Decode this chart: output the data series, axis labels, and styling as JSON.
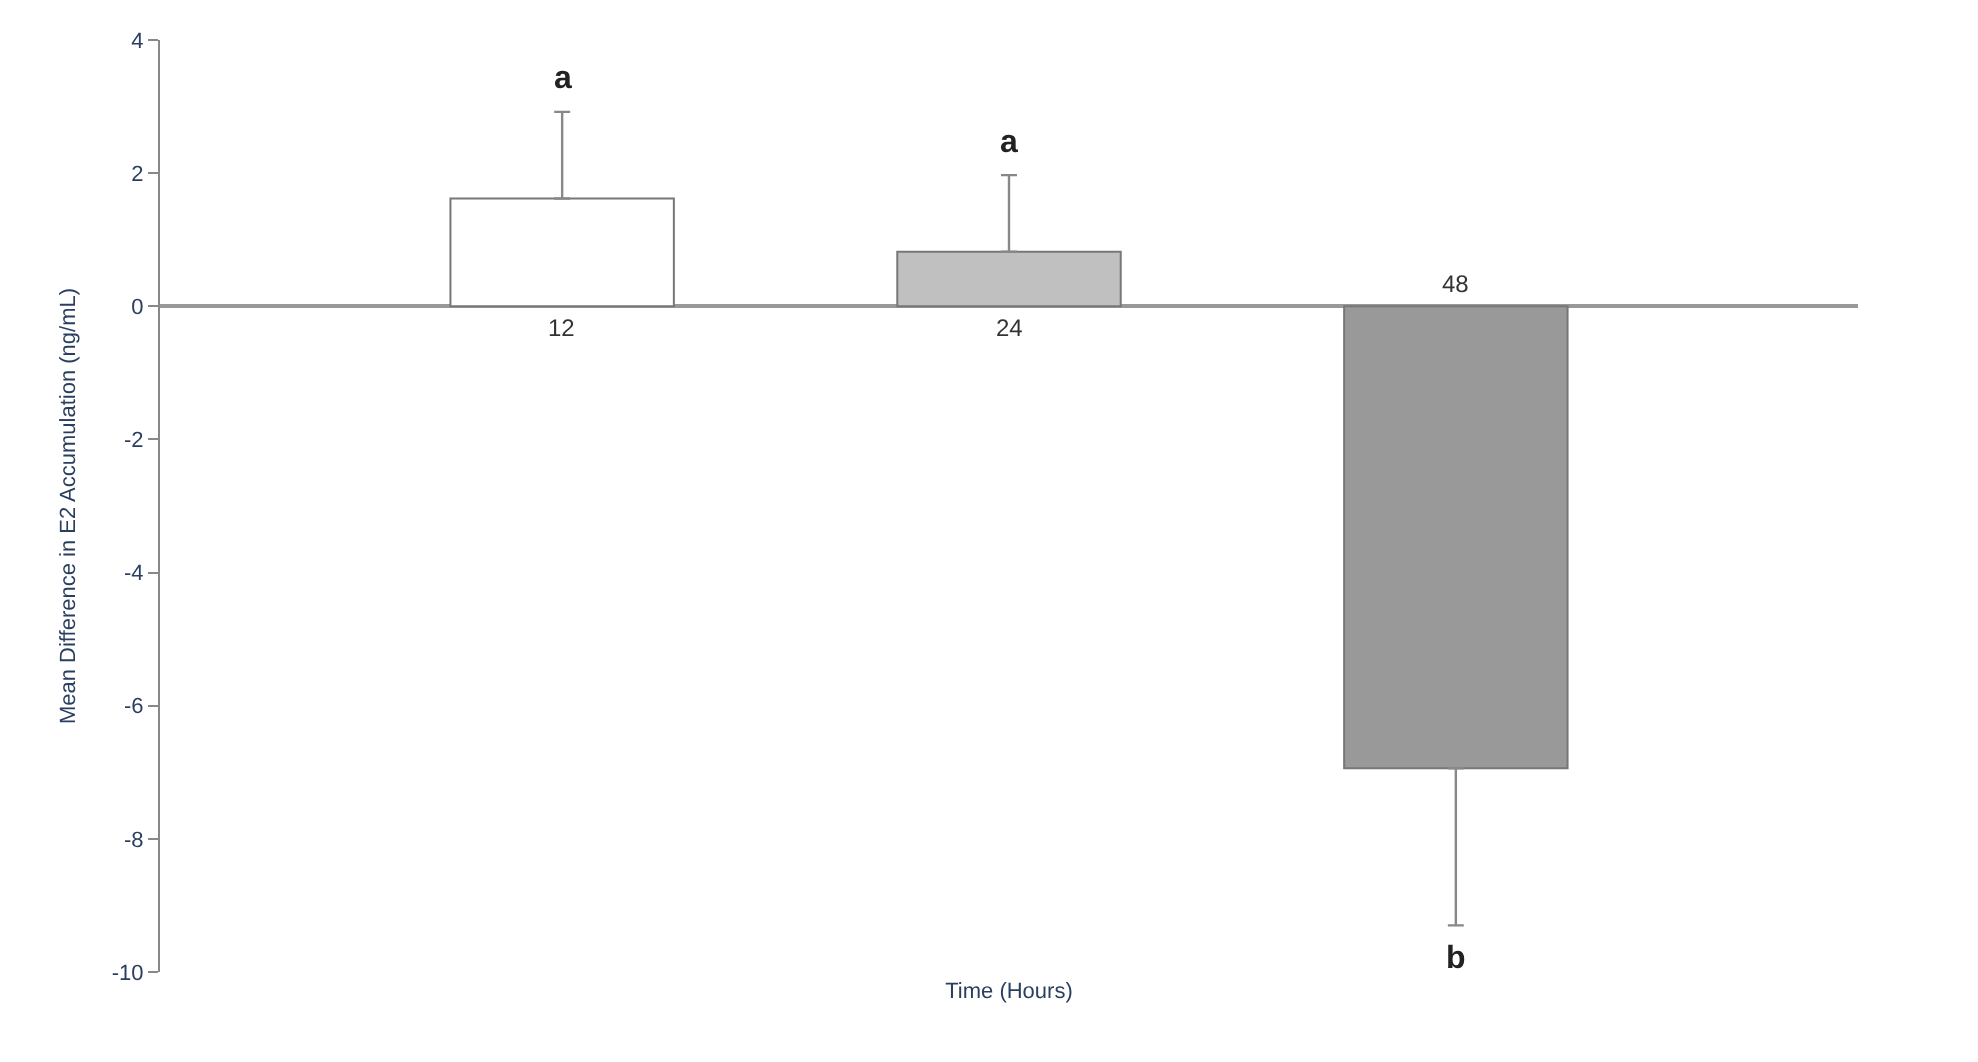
{
  "chart_data": {
    "type": "bar",
    "xlabel": "Time (Hours)",
    "ylabel": "Mean Difference in E2 Accumulation (ng/mL)",
    "categories": [
      "12",
      "24",
      "48"
    ],
    "values": [
      1.62,
      0.82,
      -6.94
    ],
    "colors": [
      "#ffffff",
      "#c0c0c0",
      "#999999"
    ],
    "errors": [
      [
        1.62,
        2.92
      ],
      [
        0.82,
        1.97
      ],
      [
        -9.3,
        -6.94
      ]
    ],
    "ylim": [
      -10,
      4
    ],
    "yticks": [
      -10,
      -8,
      -6,
      -4,
      -2,
      0,
      2,
      4
    ],
    "annotations": [
      "a",
      "a",
      "b"
    ]
  }
}
